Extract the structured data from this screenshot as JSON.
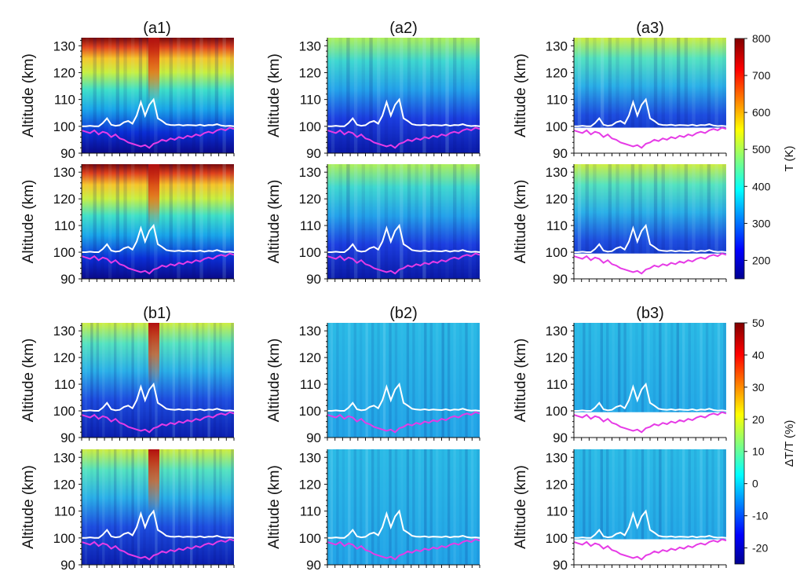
{
  "chart_data": {
    "type": "heatmap",
    "ylabel": "Altitude (km)",
    "ylim": [
      90,
      133
    ],
    "yticks": [
      90,
      100,
      110,
      120,
      130
    ],
    "panel_titles": [
      "(a1)",
      "(a2)",
      "(a3)",
      "(b1)",
      "(b2)",
      "(b3)"
    ],
    "colorbars": [
      {
        "label": "T (K)",
        "ticks": [
          200,
          300,
          400,
          500,
          600,
          700,
          800
        ],
        "range": [
          150,
          800
        ]
      },
      {
        "label": "ΔT/T (%)",
        "ticks": [
          -20,
          -10,
          0,
          10,
          20,
          30,
          40,
          50
        ],
        "range": [
          -25,
          50
        ]
      }
    ],
    "line_white_altitude_km": [
      100.0,
      100.0,
      100.2,
      100.0,
      100.0,
      101.2,
      103.0,
      100.6,
      100.2,
      100.4,
      101.5,
      102.0,
      101.0,
      104.0,
      109.0,
      104.0,
      108.0,
      110.0,
      103.0,
      102.0,
      100.8,
      100.5,
      100.4,
      100.6,
      100.3,
      100.5,
      100.4,
      100.3,
      100.6,
      100.2,
      100.5,
      100.4,
      100.8,
      100.3,
      100.1,
      100.2,
      100.0
    ],
    "line_magenta_altitude_km": [
      98.5,
      98.0,
      97.5,
      98.5,
      97.0,
      98.0,
      97.5,
      96.0,
      97.0,
      95.5,
      95.0,
      94.0,
      93.5,
      93.0,
      92.5,
      93.0,
      92.0,
      93.5,
      94.0,
      95.0,
      94.5,
      95.5,
      95.0,
      96.0,
      95.5,
      96.5,
      96.0,
      97.0,
      96.5,
      97.5,
      98.0,
      97.5,
      98.5,
      99.0,
      98.5,
      99.5,
      99.0
    ]
  }
}
